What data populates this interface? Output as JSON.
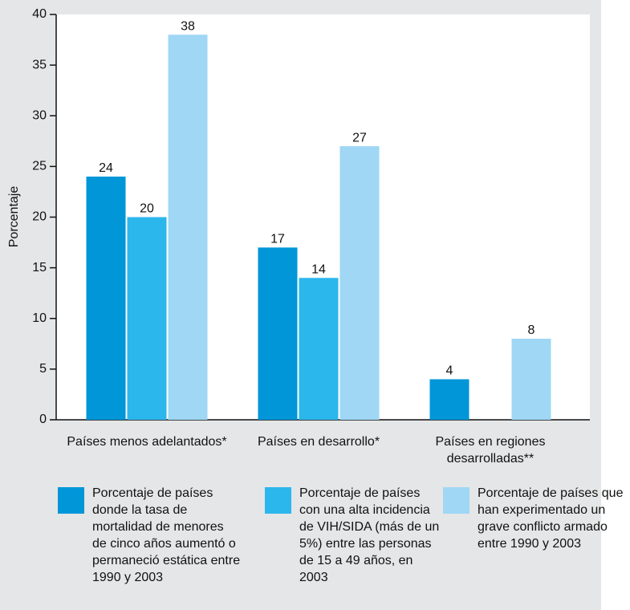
{
  "chart_data": {
    "type": "bar",
    "y_label": "Porcentaje",
    "categories": [
      "Países menos adelantados*",
      "Países en desarrollo*",
      "Países en regiones desarrolladas**"
    ],
    "series": [
      {
        "name": "Porcentaje de países donde la tasa de mortalidad de menores de cinco años aumentó o permaneció estática entre 1990 y 2003",
        "color": "#0096d8",
        "values": [
          24,
          17,
          4
        ]
      },
      {
        "name": "Porcentaje de países con una alta incidencia de VIH/SIDA (más de un 5%) entre las personas de 15 a 49 años, en 2003",
        "color": "#2cb7ec",
        "values": [
          20,
          14,
          null
        ]
      },
      {
        "name": "Porcentaje de países que han experimentado un grave conflicto armado entre 1990 y 2003",
        "color": "#9fd7f5",
        "values": [
          38,
          27,
          8
        ]
      }
    ],
    "ylim": [
      0,
      40
    ],
    "yticks": [
      0,
      5,
      10,
      15,
      20,
      25,
      30,
      35,
      40
    ],
    "grid": false
  }
}
